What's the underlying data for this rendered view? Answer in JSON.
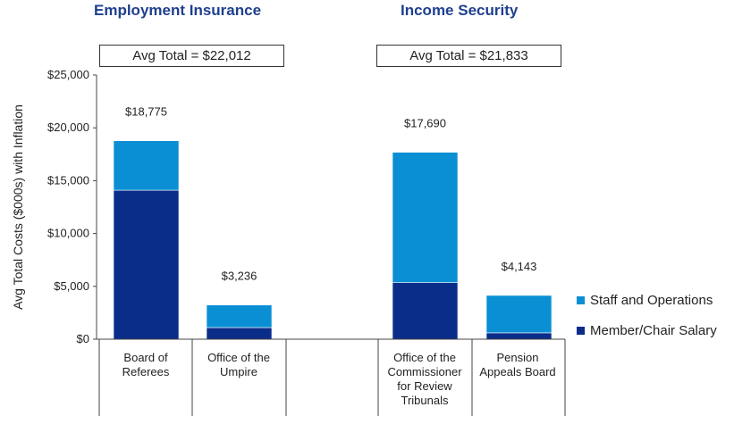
{
  "chart_data": {
    "type": "bar",
    "stacked": true,
    "ylabel": "Avg Total Costs ($000s) with Inflation",
    "ylim": [
      0,
      25000
    ],
    "yticks": [
      0,
      5000,
      10000,
      15000,
      20000,
      25000
    ],
    "ytick_labels": [
      "$0",
      "$5,000",
      "$10,000",
      "$15,000",
      "$20,000",
      "$25,000"
    ],
    "groups": [
      {
        "title": "Employment Insurance",
        "avg_label": "Avg Total = $22,012",
        "categories": [
          "Board of Referees",
          "Office of the Umpire"
        ]
      },
      {
        "title": "Income Security",
        "avg_label": "Avg Total = $21,833",
        "categories": [
          "Office of the Commissioner for Review Tribunals",
          "Pension Appeals Board"
        ]
      }
    ],
    "categories": [
      "Board of Referees",
      "Office of the Umpire",
      "Office of the Commissioner for Review Tribunals",
      "Pension Appeals Board"
    ],
    "category_lines": [
      [
        "Board of",
        "Referees"
      ],
      [
        "Office of the",
        "Umpire"
      ],
      [
        "Office of the",
        "Commissioner",
        "for Review",
        "Tribunals"
      ],
      [
        "Pension",
        "Appeals Board"
      ]
    ],
    "series": [
      {
        "name": "Member/Chair Salary",
        "color": "#0b2d8a",
        "values": [
          14100,
          1100,
          5350,
          600
        ]
      },
      {
        "name": "Staff and Operations",
        "color": "#0a8fd4",
        "values": [
          4675,
          2136,
          12340,
          3543
        ]
      }
    ],
    "totals": [
      18775,
      3236,
      17690,
      4143
    ],
    "total_labels": [
      "$18,775",
      "$3,236",
      "$17,690",
      "$4,143"
    ],
    "legend": [
      "Staff and Operations",
      "Member/Chair Salary"
    ],
    "legend_position": "right"
  }
}
